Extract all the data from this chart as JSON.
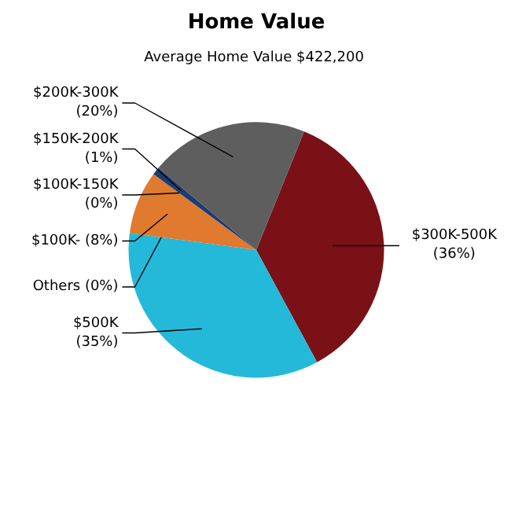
{
  "chart_data": {
    "type": "pie",
    "title": "Home Value",
    "subtitle": "Average Home Value  $422,200",
    "categories": [
      "$300K-500K",
      "$500K",
      "Others",
      "$100K-",
      "$100K-150K",
      "$150K-200K",
      "$200K-300K"
    ],
    "values": [
      36,
      35,
      0,
      8,
      0,
      1,
      20
    ],
    "value_labels": [
      "(36%)",
      "(35%)",
      "(0%)",
      "(8%)",
      "(0%)",
      "(1%)",
      "(20%)"
    ],
    "colors": [
      "#7a1116",
      "#25b9d9",
      "#9a9a9a",
      "#e07a2e",
      "#3b6fb0",
      "#1b3d73",
      "#5e5e5e"
    ]
  }
}
